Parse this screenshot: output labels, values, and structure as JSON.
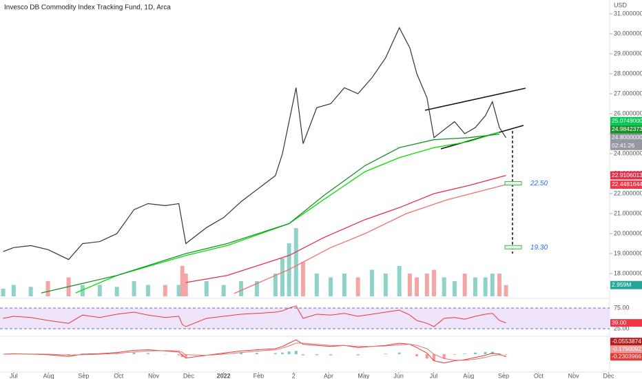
{
  "chart_data": [
    {
      "type": "line",
      "title": "Invesco DB Commodity Index Tracking Fund, 1D, Arca",
      "currency": "USD",
      "xlim": [
        -0.39,
        17.03
      ],
      "ylim": [
        16.86,
        31.69
      ],
      "xticks": [
        {
          "value": 0,
          "label": "Jul"
        },
        {
          "value": 1,
          "label": "Aug"
        },
        {
          "value": 2,
          "label": "Sep"
        },
        {
          "value": 3,
          "label": "Oct"
        },
        {
          "value": 4,
          "label": "Nov"
        },
        {
          "value": 5,
          "label": "Dec"
        },
        {
          "value": 6,
          "label": "2022"
        },
        {
          "value": 7,
          "label": "Feb"
        },
        {
          "value": 8,
          "label": "2"
        },
        {
          "value": 9,
          "label": "Apr"
        },
        {
          "value": 10,
          "label": "May"
        },
        {
          "value": 11,
          "label": "Jun"
        },
        {
          "value": 12,
          "label": "Jul"
        },
        {
          "value": 13,
          "label": "Aug"
        },
        {
          "value": 14,
          "label": "Sep"
        },
        {
          "value": 15,
          "label": "Oct"
        },
        {
          "value": 16,
          "label": "Nov"
        },
        {
          "value": 17,
          "label": "Dec"
        }
      ],
      "yticks": [
        {
          "value": 18,
          "label": "18.0000000"
        },
        {
          "value": 19,
          "label": "19.0000000"
        },
        {
          "value": 20,
          "label": "20.0000000"
        },
        {
          "value": 21,
          "label": "21.0000000"
        },
        {
          "value": 22,
          "label": "22.0000000"
        },
        {
          "value": 23,
          "label": "23.0000000"
        },
        {
          "value": 24,
          "label": "24.0000000"
        },
        {
          "value": 25,
          "label": "25.0000000"
        },
        {
          "value": 26,
          "label": "26.0000000"
        },
        {
          "value": 27,
          "label": "27.0000000"
        },
        {
          "value": 28,
          "label": "28.0000000"
        },
        {
          "value": 29,
          "label": "29.0000000"
        },
        {
          "value": 30,
          "label": "30.0000000"
        },
        {
          "value": 31,
          "label": "31.0000000"
        }
      ],
      "x": [
        -0.3,
        0,
        0.49,
        0.98,
        1.57,
        1.97,
        2.46,
        2.95,
        3.44,
        3.84,
        4.33,
        4.72,
        4.82,
        4.92,
        5.51,
        6.0,
        6.5,
        6.95,
        7.48,
        7.68,
        7.87,
        8.07,
        8.27,
        8.66,
        9.06,
        9.45,
        9.84,
        10.24,
        10.63,
        11.02,
        11.32,
        11.52,
        11.81,
        12.01,
        12.3,
        12.6,
        12.89,
        13.19,
        13.48,
        13.68,
        13.88,
        14.07
      ],
      "values": [
        19.1,
        19.3,
        19.4,
        19.2,
        18.7,
        19.5,
        19.6,
        20.0,
        21.2,
        21.5,
        21.4,
        21.5,
        20.5,
        19.5,
        20.3,
        20.8,
        21.6,
        22.2,
        22.9,
        24.0,
        25.6,
        27.3,
        24.5,
        26.3,
        26.5,
        27.3,
        27.0,
        27.8,
        28.8,
        30.3,
        29.3,
        28.0,
        26.8,
        24.8,
        25.2,
        25.6,
        25.0,
        25.3,
        25.9,
        26.6,
        25.3,
        24.8
      ],
      "color": "#333333",
      "series": [
        {
          "color": "#00e000",
          "x": [
            1.77,
            2.95,
            4.92,
            6.1,
            7.87,
            8.86,
            10.04,
            11.02,
            12.01,
            12.99,
            13.88
          ],
          "values": [
            17.03,
            17.9,
            18.9,
            19.4,
            20.5,
            21.7,
            23.1,
            23.8,
            24.3,
            24.6,
            25.07
          ]
        },
        {
          "color": "#1b8f2b",
          "x": [
            0.79,
            2.95,
            4.92,
            6.1,
            7.87,
            8.86,
            10.04,
            11.02,
            12.01,
            12.99,
            13.88
          ],
          "values": [
            17.03,
            17.9,
            19.0,
            19.5,
            20.5,
            21.9,
            23.4,
            24.3,
            24.7,
            24.8,
            24.98
          ]
        },
        {
          "color": "#e0304a",
          "x": [
            4.92,
            6.1,
            7.87,
            8.86,
            10.04,
            11.02,
            12.01,
            12.99,
            14.07
          ],
          "values": [
            17.55,
            17.9,
            18.9,
            19.8,
            20.7,
            21.3,
            22.0,
            22.4,
            22.91
          ]
        },
        {
          "color": "#f07070",
          "x": [
            6.3,
            7.87,
            9.06,
            10.04,
            11.22,
            12.4,
            14.07
          ],
          "values": [
            17.0,
            18.2,
            19.3,
            20.0,
            21.0,
            21.7,
            22.45
          ]
        }
      ],
      "volume": [
        2,
        3,
        2.5,
        4,
        5,
        3,
        3,
        2.5,
        4,
        3,
        3,
        3,
        8,
        6,
        4,
        3,
        4,
        4,
        6,
        10,
        14,
        18,
        9,
        6,
        5,
        6,
        5,
        7,
        6,
        8,
        6,
        5,
        6,
        7,
        5,
        4,
        6,
        5,
        5,
        6,
        6,
        2.959
      ],
      "volume_up_color": "#8fd3c8",
      "volume_down_color": "#f4a6a6",
      "volume_badge": {
        "value": 2.959,
        "label": "2.959M",
        "color": "#26a69a"
      },
      "badges": [
        {
          "value": 25.0749,
          "label": "25.0749000",
          "color": "#00c853"
        },
        {
          "value": 24.9842373,
          "label": "24.9842373",
          "color": "#1b8f2b"
        },
        {
          "value": 24.8,
          "label": "24.8000000",
          "sub": "02:41:26",
          "color": "#9598a1"
        },
        {
          "value": 22.9106013,
          "label": "22.9106013",
          "color": "#e0304a"
        },
        {
          "value": 22.4481644,
          "label": "22.4481644",
          "color": "#f23645"
        }
      ],
      "annotations": [
        {
          "value": 22.5,
          "label": "22.50"
        },
        {
          "value": 19.3,
          "label": "19.30"
        }
      ]
    },
    {
      "type": "rsi",
      "ylim": [
        8.3,
        91.7
      ],
      "yticks": [
        {
          "value": 75,
          "label": "75.00"
        },
        {
          "value": 25,
          "label": "25.00"
        }
      ],
      "values": [
        50,
        55,
        52,
        45,
        38,
        58,
        52,
        60,
        65,
        58,
        52,
        55,
        35,
        30,
        50,
        55,
        60,
        62,
        65,
        68,
        75,
        80,
        50,
        60,
        58,
        62,
        55,
        60,
        65,
        70,
        58,
        45,
        38,
        30,
        50,
        52,
        48,
        55,
        60,
        62,
        45,
        39
      ],
      "color": "#e53935",
      "band_color": "#f0e4fb",
      "badges": [
        {
          "value": 39,
          "label": "39.00",
          "color": "#f23645"
        }
      ]
    },
    {
      "type": "macd",
      "ylim": [
        -1.5,
        1.5
      ],
      "macd": [
        0,
        0.05,
        0,
        -0.05,
        -0.2,
        0,
        0.05,
        0.15,
        0.35,
        0.4,
        0.3,
        0.2,
        -0.1,
        -0.35,
        -0.1,
        0.1,
        0.3,
        0.4,
        0.5,
        0.7,
        1.0,
        1.3,
        0.9,
        0.8,
        0.7,
        0.8,
        0.6,
        0.7,
        0.8,
        1.0,
        0.9,
        0.6,
        0.1,
        -0.6,
        -0.8,
        -0.6,
        -0.5,
        -0.3,
        -0.1,
        0.1,
        0,
        -0.23
      ],
      "signal": [
        0,
        0.02,
        0.02,
        0,
        -0.08,
        -0.05,
        0,
        0.07,
        0.2,
        0.3,
        0.33,
        0.3,
        0.15,
        -0.05,
        -0.1,
        0,
        0.15,
        0.28,
        0.4,
        0.55,
        0.75,
        1.0,
        1.0,
        0.9,
        0.8,
        0.8,
        0.7,
        0.7,
        0.75,
        0.85,
        0.9,
        0.8,
        0.5,
        0.0,
        -0.4,
        -0.55,
        -0.55,
        -0.45,
        -0.3,
        -0.12,
        -0.05,
        -0.18
      ],
      "macd_color": "#e53935",
      "signal_color": "#e57373",
      "badges": [
        {
          "value": -0.0553874,
          "label": "-0.0553874",
          "color": "#b71c1c"
        },
        {
          "value": -0.1750092,
          "label": "-0.1750092",
          "color": "#ef9a9a"
        },
        {
          "value": -0.2303966,
          "label": "-0.2303966",
          "color": "#e53935"
        }
      ]
    }
  ]
}
